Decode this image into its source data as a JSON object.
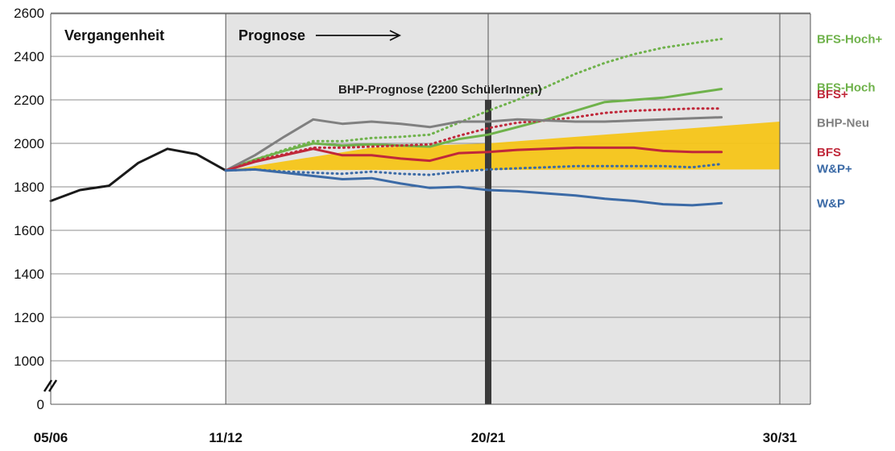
{
  "chart_data": {
    "type": "line",
    "y_ticks": [
      "0",
      "1000",
      "1200",
      "1400",
      "1600",
      "1800",
      "2000",
      "2200",
      "2400",
      "2600"
    ],
    "x_tick_labels": [
      "05/06",
      "11/12",
      "20/21",
      "30/31"
    ],
    "region_labels": {
      "past": "Vergangenheit",
      "forecast": "Prognose"
    },
    "annotation": "BHP-Prognose (2200 SchülerInnen)",
    "annotation_value": 2200,
    "ylim": [
      1000,
      2600
    ],
    "axis_break": true,
    "grid": true,
    "band": {
      "color": "#f5c518",
      "start_year": 2011,
      "end_year": 2030
    },
    "band_lower": [
      [
        2011,
        1875
      ],
      [
        2016,
        1878
      ],
      [
        2020,
        1878
      ],
      [
        2030,
        1880
      ]
    ],
    "band_upper": [
      [
        2011,
        1875
      ],
      [
        2016,
        1980
      ],
      [
        2020,
        2000
      ],
      [
        2030,
        2100
      ]
    ],
    "series": [
      {
        "name": "",
        "color": "#1a1a1a",
        "style": "solid",
        "points": [
          [
            2005,
            1735
          ],
          [
            2006,
            1785
          ],
          [
            2007,
            1805
          ],
          [
            2008,
            1910
          ],
          [
            2009,
            1975
          ],
          [
            2010,
            1950
          ],
          [
            2011,
            1875
          ]
        ]
      },
      {
        "name": "BFS-Hoch+",
        "color": "#6fb24b",
        "style": "dotted",
        "points": [
          [
            2011,
            1875
          ],
          [
            2012,
            1925
          ],
          [
            2013,
            1970
          ],
          [
            2014,
            2010
          ],
          [
            2015,
            2010
          ],
          [
            2016,
            2025
          ],
          [
            2017,
            2030
          ],
          [
            2018,
            2040
          ],
          [
            2019,
            2095
          ],
          [
            2020,
            2150
          ],
          [
            2021,
            2200
          ],
          [
            2022,
            2260
          ],
          [
            2023,
            2320
          ],
          [
            2024,
            2370
          ],
          [
            2025,
            2410
          ],
          [
            2026,
            2440
          ],
          [
            2027,
            2460
          ],
          [
            2028,
            2480
          ]
        ]
      },
      {
        "name": "BFS-Hoch",
        "color": "#6fb24b",
        "style": "solid",
        "points": [
          [
            2011,
            1875
          ],
          [
            2012,
            1925
          ],
          [
            2013,
            1965
          ],
          [
            2014,
            2000
          ],
          [
            2015,
            1990
          ],
          [
            2016,
            1995
          ],
          [
            2017,
            1990
          ],
          [
            2018,
            1985
          ],
          [
            2019,
            2020
          ],
          [
            2020,
            2040
          ],
          [
            2021,
            2075
          ],
          [
            2022,
            2110
          ],
          [
            2023,
            2150
          ],
          [
            2024,
            2190
          ],
          [
            2025,
            2200
          ],
          [
            2026,
            2210
          ],
          [
            2027,
            2230
          ],
          [
            2028,
            2250
          ]
        ]
      },
      {
        "name": "BFS+",
        "color": "#c0283a",
        "style": "dotted",
        "points": [
          [
            2011,
            1875
          ],
          [
            2012,
            1920
          ],
          [
            2013,
            1950
          ],
          [
            2014,
            1980
          ],
          [
            2015,
            1980
          ],
          [
            2016,
            1985
          ],
          [
            2017,
            1990
          ],
          [
            2018,
            1995
          ],
          [
            2019,
            2035
          ],
          [
            2020,
            2070
          ],
          [
            2021,
            2095
          ],
          [
            2022,
            2105
          ],
          [
            2023,
            2120
          ],
          [
            2024,
            2140
          ],
          [
            2025,
            2150
          ],
          [
            2026,
            2155
          ],
          [
            2027,
            2160
          ],
          [
            2028,
            2160
          ]
        ]
      },
      {
        "name": "BHP-Neu",
        "color": "#808080",
        "style": "solid",
        "points": [
          [
            2011,
            1875
          ],
          [
            2012,
            1945
          ],
          [
            2013,
            2030
          ],
          [
            2014,
            2110
          ],
          [
            2015,
            2090
          ],
          [
            2016,
            2100
          ],
          [
            2017,
            2090
          ],
          [
            2018,
            2075
          ],
          [
            2019,
            2100
          ],
          [
            2020,
            2100
          ],
          [
            2021,
            2110
          ],
          [
            2022,
            2105
          ],
          [
            2023,
            2100
          ],
          [
            2024,
            2100
          ],
          [
            2025,
            2105
          ],
          [
            2026,
            2110
          ],
          [
            2027,
            2115
          ],
          [
            2028,
            2120
          ]
        ]
      },
      {
        "name": "BFS",
        "color": "#c0283a",
        "style": "solid",
        "points": [
          [
            2011,
            1875
          ],
          [
            2012,
            1915
          ],
          [
            2013,
            1945
          ],
          [
            2014,
            1975
          ],
          [
            2015,
            1945
          ],
          [
            2016,
            1945
          ],
          [
            2017,
            1930
          ],
          [
            2018,
            1920
          ],
          [
            2019,
            1955
          ],
          [
            2020,
            1960
          ],
          [
            2021,
            1970
          ],
          [
            2022,
            1975
          ],
          [
            2023,
            1980
          ],
          [
            2024,
            1980
          ],
          [
            2025,
            1980
          ],
          [
            2026,
            1965
          ],
          [
            2027,
            1960
          ],
          [
            2028,
            1960
          ]
        ]
      },
      {
        "name": "W&P+",
        "color": "#3b6aa6",
        "style": "dotted",
        "points": [
          [
            2011,
            1875
          ],
          [
            2012,
            1880
          ],
          [
            2013,
            1870
          ],
          [
            2014,
            1865
          ],
          [
            2015,
            1860
          ],
          [
            2016,
            1870
          ],
          [
            2017,
            1860
          ],
          [
            2018,
            1855
          ],
          [
            2019,
            1870
          ],
          [
            2020,
            1880
          ],
          [
            2021,
            1885
          ],
          [
            2022,
            1890
          ],
          [
            2023,
            1895
          ],
          [
            2024,
            1895
          ],
          [
            2025,
            1895
          ],
          [
            2026,
            1895
          ],
          [
            2027,
            1890
          ],
          [
            2028,
            1905
          ]
        ]
      },
      {
        "name": "W&P",
        "color": "#3b6aa6",
        "style": "solid",
        "points": [
          [
            2011,
            1875
          ],
          [
            2012,
            1880
          ],
          [
            2013,
            1865
          ],
          [
            2014,
            1850
          ],
          [
            2015,
            1835
          ],
          [
            2016,
            1840
          ],
          [
            2017,
            1815
          ],
          [
            2018,
            1795
          ],
          [
            2019,
            1800
          ],
          [
            2020,
            1785
          ],
          [
            2021,
            1780
          ],
          [
            2022,
            1770
          ],
          [
            2023,
            1760
          ],
          [
            2024,
            1745
          ],
          [
            2025,
            1735
          ],
          [
            2026,
            1720
          ],
          [
            2027,
            1715
          ],
          [
            2028,
            1725
          ]
        ]
      }
    ]
  }
}
